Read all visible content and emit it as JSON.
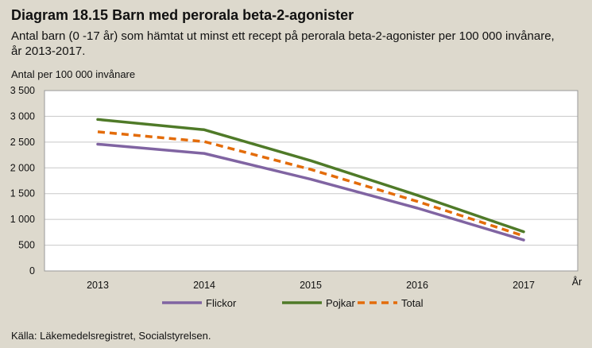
{
  "title": "Diagram 18.15 Barn med perorala beta-2-agonister",
  "subtitle": "Antal barn (0 -17 år) som hämtat ut minst ett recept på perorala beta-2-agonister per 100 000 invånare, år 2013-2017.",
  "source": "Källa: Läkemedelsregistret, Socialstyrelsen.",
  "chart_data": {
    "type": "line",
    "ylabel": "Antal per 100 000 invånare",
    "xlabel": "År",
    "categories": [
      "2013",
      "2014",
      "2015",
      "2016",
      "2017"
    ],
    "ylim": [
      0,
      3500
    ],
    "yticks": [
      0,
      500,
      1000,
      1500,
      2000,
      2500,
      3000,
      3500
    ],
    "ytick_labels": [
      "0",
      "500",
      "1 000",
      "1 500",
      "2 000",
      "2 500",
      "3 000",
      "3 500"
    ],
    "grid": true,
    "legend_position": "bottom",
    "series": [
      {
        "name": "Flickor",
        "color": "#8064a2",
        "dashed": false,
        "values": [
          2460,
          2280,
          1780,
          1220,
          600
        ]
      },
      {
        "name": "Pojkar",
        "color": "#4f7a28",
        "dashed": false,
        "values": [
          2940,
          2740,
          2140,
          1470,
          760
        ]
      },
      {
        "name": "Total",
        "color": "#e36c0a",
        "dashed": true,
        "values": [
          2700,
          2510,
          1970,
          1350,
          680
        ]
      }
    ]
  }
}
